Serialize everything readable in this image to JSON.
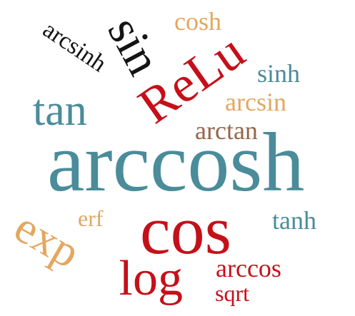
{
  "colors": {
    "teal": "#4a8c9a",
    "red": "#c5101a",
    "orange": "#e3a760",
    "brown": "#96654a",
    "black": "#141414"
  },
  "words": [
    {
      "text": "arccosh",
      "color": "#4a8c9a",
      "orientation": "horizontal"
    },
    {
      "text": "cos",
      "color": "#c5101a",
      "orientation": "horizontal"
    },
    {
      "text": "ReLu",
      "color": "#c5101a",
      "orientation": "diagonal"
    },
    {
      "text": "sin",
      "color": "#141414",
      "orientation": "diagonal"
    },
    {
      "text": "tan",
      "color": "#4a8c9a",
      "orientation": "horizontal"
    },
    {
      "text": "exp",
      "color": "#e3a760",
      "orientation": "diagonal"
    },
    {
      "text": "log",
      "color": "#c5101a",
      "orientation": "horizontal"
    },
    {
      "text": "arcsinh",
      "color": "#141414",
      "orientation": "diagonal"
    },
    {
      "text": "cosh",
      "color": "#e3a760",
      "orientation": "horizontal"
    },
    {
      "text": "sinh",
      "color": "#4a8c9a",
      "orientation": "horizontal"
    },
    {
      "text": "arcsin",
      "color": "#e3a760",
      "orientation": "horizontal"
    },
    {
      "text": "arctan",
      "color": "#96654a",
      "orientation": "horizontal"
    },
    {
      "text": "tanh",
      "color": "#4a8c9a",
      "orientation": "horizontal"
    },
    {
      "text": "erf",
      "color": "#e3a760",
      "orientation": "horizontal"
    },
    {
      "text": "arccos",
      "color": "#c5101a",
      "orientation": "horizontal"
    },
    {
      "text": "sqrt",
      "color": "#c5101a",
      "orientation": "horizontal"
    }
  ]
}
